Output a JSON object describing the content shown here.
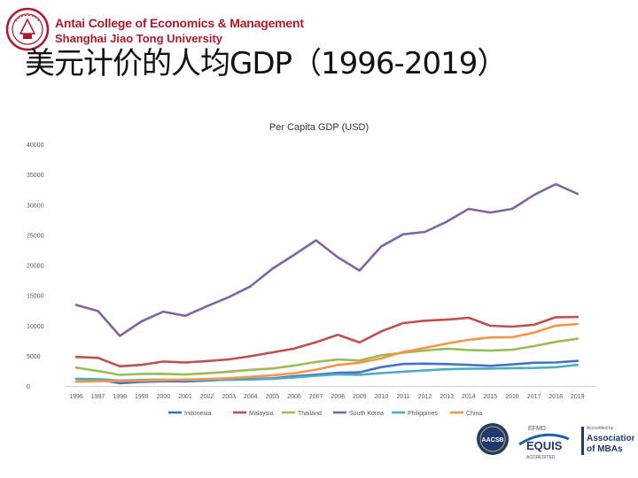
{
  "header": {
    "college_name": "Antai College of Economics & Management",
    "university_name": "Shanghai Jiao Tong University",
    "slide_title": "美元计价的人均GDP（1996-2019）"
  },
  "accreditation": {
    "aacsb": "AACSB",
    "equis_top": "EFMD",
    "equis": "EQUIS",
    "equis_sub": "ACCREDITED",
    "amba_top": "Accredited by",
    "amba_line1": "Association",
    "amba_line2": "of MBAs"
  },
  "chart_data": {
    "type": "line",
    "title": "Per Capita GDP (USD)",
    "xlabel": "",
    "ylabel": "",
    "ylim": [
      0,
      40000
    ],
    "yticks": [
      "0",
      "5000",
      "10000",
      "15000",
      "20000",
      "25000",
      "30000",
      "35000",
      "40000"
    ],
    "legend_position": "bottom",
    "grid": false,
    "categories": [
      "1996",
      "1997",
      "1998",
      "1999",
      "2000",
      "2001",
      "2002",
      "2003",
      "2004",
      "2005",
      "2006",
      "2007",
      "2008",
      "2009",
      "2010",
      "2011",
      "2012",
      "2013",
      "2014",
      "2015",
      "2016",
      "2017",
      "2018",
      "2019"
    ],
    "series": [
      {
        "name": "Indonesia",
        "color": "#4472c4",
        "values": [
          1150,
          1060,
          460,
          670,
          780,
          750,
          890,
          1060,
          1150,
          1260,
          1590,
          1860,
          2170,
          2260,
          3120,
          3640,
          3690,
          3620,
          3490,
          3330,
          3560,
          3840,
          3890,
          4140
        ]
      },
      {
        "name": "Malaysia",
        "color": "#c0504d",
        "values": [
          4800,
          4640,
          3260,
          3490,
          4040,
          3880,
          4120,
          4400,
          4920,
          5550,
          6180,
          7240,
          8470,
          7200,
          9040,
          10400,
          10800,
          10970,
          11300,
          9960,
          9820,
          10120,
          11370,
          11410
        ]
      },
      {
        "name": "Thailand",
        "color": "#9bbb59",
        "values": [
          3040,
          2470,
          1830,
          1990,
          2010,
          1890,
          2100,
          2360,
          2660,
          2890,
          3370,
          3970,
          4380,
          4210,
          5080,
          5490,
          5860,
          6170,
          5950,
          5840,
          5990,
          6590,
          7300,
          7810
        ]
      },
      {
        "name": "South Korea",
        "color": "#8064a2",
        "values": [
          13400,
          12400,
          8300,
          10700,
          12300,
          11600,
          13200,
          14700,
          16500,
          19400,
          21700,
          24100,
          21300,
          19100,
          23100,
          25100,
          25500,
          27200,
          29300,
          28700,
          29300,
          31600,
          33400,
          31800
        ]
      },
      {
        "name": "Philippines",
        "color": "#4bacc6",
        "values": [
          1180,
          1130,
          900,
          1000,
          1040,
          970,
          1000,
          1010,
          1070,
          1190,
          1400,
          1680,
          1920,
          1840,
          2130,
          2360,
          2580,
          2770,
          2840,
          2880,
          2950,
          2980,
          3100,
          3480
        ]
      },
      {
        "name": "China",
        "color": "#f79646",
        "values": [
          710,
          780,
          830,
          870,
          960,
          1050,
          1150,
          1290,
          1510,
          1750,
          2100,
          2690,
          3470,
          3840,
          4550,
          5620,
          6300,
          7020,
          7640,
          8030,
          8080,
          8820,
          9980,
          10260
        ]
      }
    ]
  }
}
